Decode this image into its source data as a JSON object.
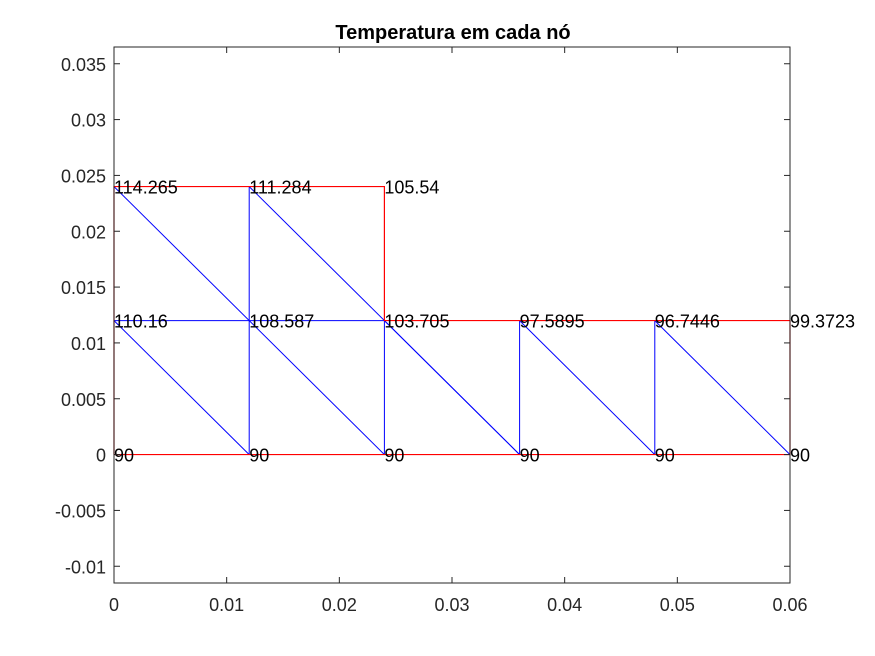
{
  "chart_data": {
    "type": "mesh",
    "title": "Temperatura em cada nó",
    "xlabel": "",
    "ylabel": "",
    "xlim": [
      0,
      0.06
    ],
    "ylim": [
      -0.0115,
      0.0365
    ],
    "xticks": [
      "0",
      "0.01",
      "0.02",
      "0.03",
      "0.04",
      "0.05",
      "0.06"
    ],
    "xtick_values": [
      0,
      0.01,
      0.02,
      0.03,
      0.04,
      0.05,
      0.06
    ],
    "yticks": [
      "-0.01",
      "-0.005",
      "0",
      "0.005",
      "0.01",
      "0.015",
      "0.02",
      "0.025",
      "0.03",
      "0.035"
    ],
    "ytick_values": [
      -0.01,
      -0.005,
      0,
      0.005,
      0.01,
      0.015,
      0.02,
      0.025,
      0.03,
      0.035
    ],
    "grid": false,
    "boundary_color": "#ff0000",
    "element_color": "#0000ff",
    "boundary": [
      [
        0,
        0
      ],
      [
        0.06,
        0
      ],
      [
        0.06,
        0.012
      ],
      [
        0.024,
        0.012
      ],
      [
        0.024,
        0.024
      ],
      [
        0,
        0.024
      ],
      [
        0,
        0
      ]
    ],
    "element_edges": [
      [
        [
          0,
          0.012
        ],
        [
          0.024,
          0.012
        ]
      ],
      [
        [
          0.012,
          0
        ],
        [
          0.012,
          0.024
        ]
      ],
      [
        [
          0.024,
          0
        ],
        [
          0.024,
          0.012
        ]
      ],
      [
        [
          0.036,
          0
        ],
        [
          0.036,
          0.012
        ]
      ],
      [
        [
          0.048,
          0
        ],
        [
          0.048,
          0.012
        ]
      ],
      [
        [
          0,
          0.024
        ],
        [
          0.024,
          0
        ]
      ],
      [
        [
          0.012,
          0.024
        ],
        [
          0.036,
          0
        ]
      ],
      [
        [
          0,
          0.012
        ],
        [
          0.012,
          0
        ]
      ],
      [
        [
          0.024,
          0.012
        ],
        [
          0.036,
          0
        ]
      ],
      [
        [
          0.036,
          0.012
        ],
        [
          0.048,
          0
        ]
      ],
      [
        [
          0.048,
          0.012
        ],
        [
          0.06,
          0
        ]
      ]
    ],
    "nodes": [
      {
        "x": 0,
        "y": 0,
        "label": "90"
      },
      {
        "x": 0.012,
        "y": 0,
        "label": "90"
      },
      {
        "x": 0.024,
        "y": 0,
        "label": "90"
      },
      {
        "x": 0.036,
        "y": 0,
        "label": "90"
      },
      {
        "x": 0.048,
        "y": 0,
        "label": "90"
      },
      {
        "x": 0.06,
        "y": 0,
        "label": "90"
      },
      {
        "x": 0,
        "y": 0.012,
        "label": "110.16"
      },
      {
        "x": 0.012,
        "y": 0.012,
        "label": "108.587"
      },
      {
        "x": 0.024,
        "y": 0.012,
        "label": "103.705"
      },
      {
        "x": 0.036,
        "y": 0.012,
        "label": "97.5895"
      },
      {
        "x": 0.048,
        "y": 0.012,
        "label": "96.7446"
      },
      {
        "x": 0.06,
        "y": 0.012,
        "label": "99.3723"
      },
      {
        "x": 0,
        "y": 0.024,
        "label": "114.265"
      },
      {
        "x": 0.012,
        "y": 0.024,
        "label": "111.284"
      },
      {
        "x": 0.024,
        "y": 0.024,
        "label": "105.54"
      }
    ]
  }
}
